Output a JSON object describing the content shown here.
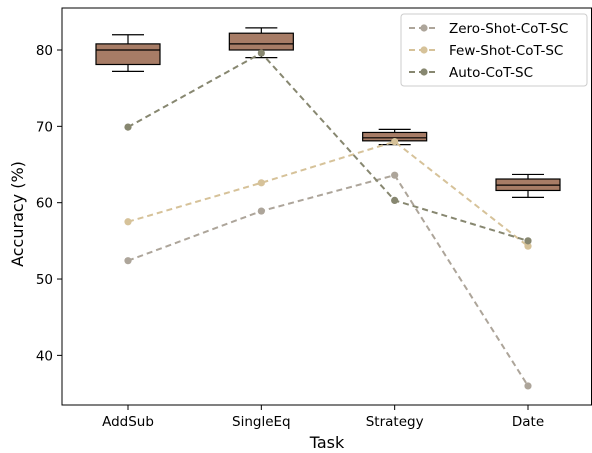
{
  "chart_data": {
    "type": "line",
    "title": "",
    "xlabel": "Task",
    "ylabel": "Accuracy (%)",
    "categories": [
      "AddSub",
      "SingleEq",
      "Strategy",
      "Date"
    ],
    "ylim": [
      33.5,
      85.5
    ],
    "yticks": [
      40,
      50,
      60,
      70,
      80
    ],
    "grid": false,
    "legend_position": "top-right",
    "series": [
      {
        "name": "Zero-Shot-CoT-SC",
        "values": [
          52.4,
          58.9,
          63.6,
          36.0
        ],
        "color": "#ada59a",
        "style": "dashed",
        "marker": "circle"
      },
      {
        "name": "Few-Shot-CoT-SC",
        "values": [
          57.5,
          62.6,
          68.0,
          54.3
        ],
        "color": "#d6c299",
        "style": "dashed",
        "marker": "circle"
      },
      {
        "name": "Auto-CoT-SC",
        "values": [
          69.9,
          79.6,
          60.3,
          55.0
        ],
        "color": "#878770",
        "style": "dashed",
        "marker": "circle"
      }
    ],
    "boxes": [
      {
        "category": "AddSub",
        "whisker_low": 77.2,
        "q1": 78.1,
        "median": 80.0,
        "q3": 80.8,
        "whisker_high": 82.0
      },
      {
        "category": "SingleEq",
        "whisker_low": 79.0,
        "q1": 80.0,
        "median": 80.8,
        "q3": 82.2,
        "whisker_high": 82.9
      },
      {
        "category": "Strategy",
        "whisker_low": 67.6,
        "q1": 68.1,
        "median": 68.5,
        "q3": 69.2,
        "whisker_high": 69.6
      },
      {
        "category": "Date",
        "whisker_low": 60.7,
        "q1": 61.6,
        "median": 62.3,
        "q3": 63.1,
        "whisker_high": 63.7
      }
    ],
    "box_color": "#a77c66"
  }
}
